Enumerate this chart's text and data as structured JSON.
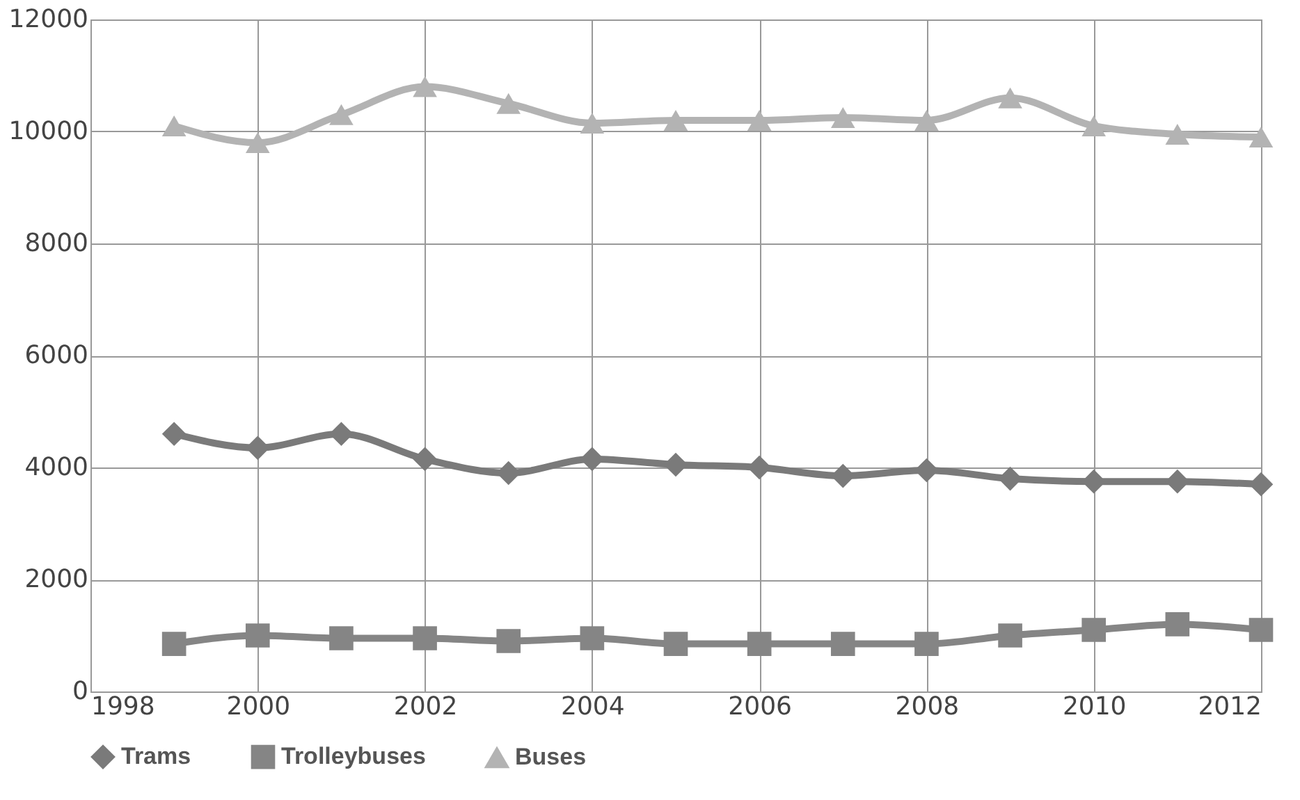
{
  "chart_data": {
    "type": "line",
    "x": [
      1999,
      2000,
      2001,
      2002,
      2003,
      2004,
      2005,
      2006,
      2007,
      2008,
      2009,
      2010,
      2011,
      2012
    ],
    "xlim": [
      1998,
      2012
    ],
    "xticks": [
      1998,
      2000,
      2002,
      2004,
      2006,
      2008,
      2010,
      2012
    ],
    "ylim": [
      0,
      12000
    ],
    "yticks": [
      0,
      2000,
      4000,
      6000,
      8000,
      10000,
      12000
    ],
    "grid": true,
    "legend": "bottom",
    "series": [
      {
        "name": "Trams",
        "color": "#7a7a7a",
        "marker": "diamond",
        "values": [
          4600,
          4350,
          4600,
          4150,
          3900,
          4150,
          4050,
          4000,
          3850,
          3950,
          3800,
          3750,
          3750,
          3700
        ]
      },
      {
        "name": "Trolleybuses",
        "color": "#858585",
        "marker": "square",
        "values": [
          850,
          1000,
          950,
          950,
          900,
          950,
          850,
          850,
          850,
          850,
          1000,
          1100,
          1200,
          1100
        ]
      },
      {
        "name": "Buses",
        "color": "#b3b3b3",
        "marker": "triangle",
        "values": [
          10100,
          9800,
          10300,
          10800,
          10500,
          10150,
          10200,
          10200,
          10250,
          10200,
          10600,
          10100,
          9950,
          9900
        ]
      }
    ]
  }
}
